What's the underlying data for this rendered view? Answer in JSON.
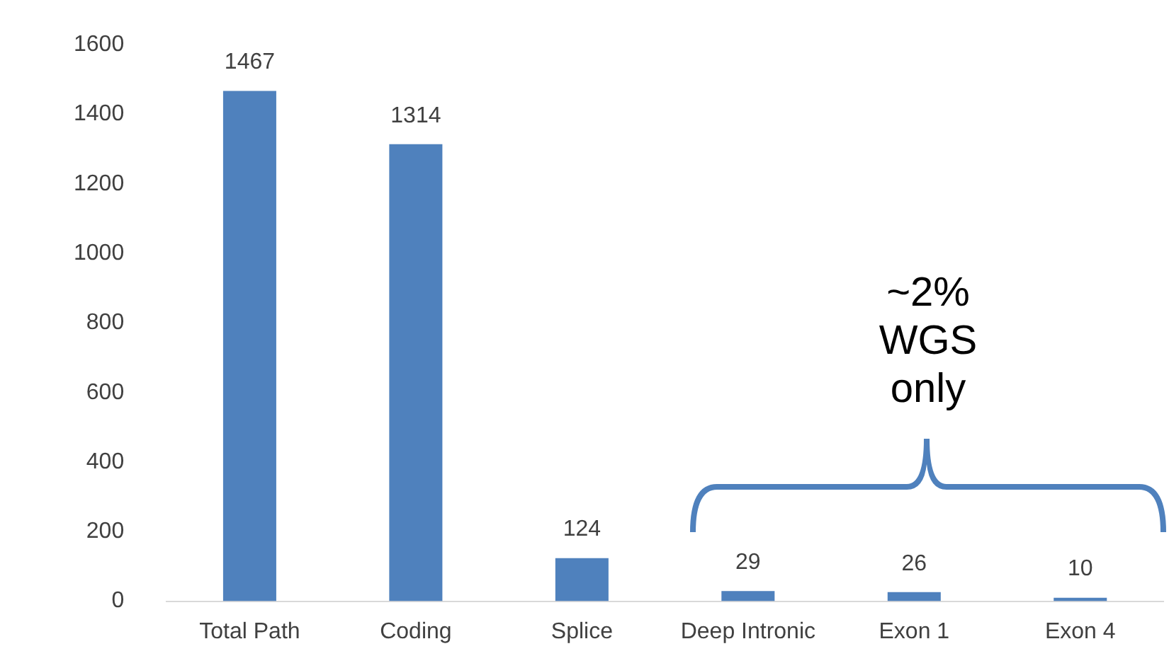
{
  "chart_data": {
    "type": "bar",
    "categories": [
      "Total Path",
      "Coding",
      "Splice",
      "Deep Intronic",
      "Exon 1",
      "Exon 4"
    ],
    "values": [
      1467,
      1314,
      124,
      29,
      26,
      10
    ],
    "color": "#4f81bd",
    "ylim": [
      0,
      1600
    ],
    "yticks": [
      0,
      200,
      400,
      600,
      800,
      1000,
      1200,
      1400,
      1600
    ],
    "grid": false,
    "data_labels": true,
    "annotations": [
      "~2%\nWGS\nonly"
    ]
  }
}
